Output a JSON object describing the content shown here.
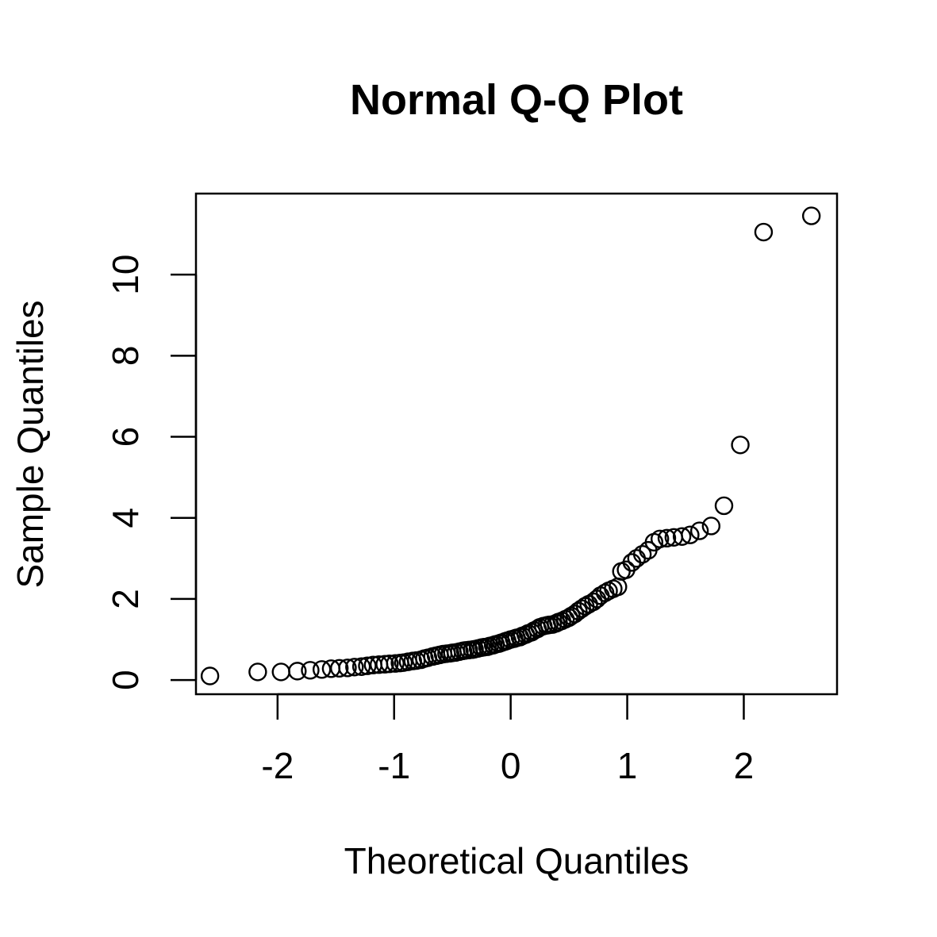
{
  "chart_data": {
    "type": "scatter",
    "title": "Normal Q-Q Plot",
    "xlabel": "Theoretical Quantiles",
    "ylabel": "Sample Quantiles",
    "xlim": [
      -2.7,
      2.8
    ],
    "ylim": [
      -0.35,
      12.0
    ],
    "x_ticks": [
      -2,
      -1,
      0,
      1,
      2
    ],
    "x_tick_labels": [
      "-2",
      "-1",
      "0",
      "1",
      "2"
    ],
    "y_ticks": [
      0,
      2,
      4,
      6,
      8,
      10
    ],
    "y_tick_labels": [
      "0",
      "2",
      "4",
      "6",
      "8",
      "10"
    ],
    "grid": false,
    "point_shape": "open-circle",
    "points": [
      [
        -2.58,
        0.1
      ],
      [
        -2.17,
        0.2
      ],
      [
        -1.97,
        0.2
      ],
      [
        -1.83,
        0.22
      ],
      [
        -1.72,
        0.24
      ],
      [
        -1.62,
        0.26
      ],
      [
        -1.54,
        0.28
      ],
      [
        -1.47,
        0.29
      ],
      [
        -1.4,
        0.3
      ],
      [
        -1.34,
        0.32
      ],
      [
        -1.28,
        0.33
      ],
      [
        -1.23,
        0.35
      ],
      [
        -1.18,
        0.37
      ],
      [
        -1.13,
        0.38
      ],
      [
        -1.08,
        0.39
      ],
      [
        -1.04,
        0.4
      ],
      [
        -0.99,
        0.41
      ],
      [
        -0.95,
        0.42
      ],
      [
        -0.92,
        0.43
      ],
      [
        -0.88,
        0.45
      ],
      [
        -0.84,
        0.47
      ],
      [
        -0.81,
        0.48
      ],
      [
        -0.77,
        0.5
      ],
      [
        -0.74,
        0.53
      ],
      [
        -0.71,
        0.55
      ],
      [
        -0.67,
        0.58
      ],
      [
        -0.64,
        0.6
      ],
      [
        -0.61,
        0.62
      ],
      [
        -0.58,
        0.64
      ],
      [
        -0.55,
        0.65
      ],
      [
        -0.52,
        0.66
      ],
      [
        -0.5,
        0.67
      ],
      [
        -0.47,
        0.68
      ],
      [
        -0.44,
        0.7
      ],
      [
        -0.41,
        0.72
      ],
      [
        -0.39,
        0.73
      ],
      [
        -0.36,
        0.74
      ],
      [
        -0.33,
        0.75
      ],
      [
        -0.31,
        0.76
      ],
      [
        -0.28,
        0.78
      ],
      [
        -0.25,
        0.8
      ],
      [
        -0.23,
        0.81
      ],
      [
        -0.2,
        0.82
      ],
      [
        -0.18,
        0.84
      ],
      [
        -0.15,
        0.86
      ],
      [
        -0.13,
        0.88
      ],
      [
        -0.1,
        0.9
      ],
      [
        -0.08,
        0.92
      ],
      [
        -0.05,
        0.95
      ],
      [
        -0.03,
        0.97
      ],
      [
        0.0,
        1.0
      ],
      [
        0.03,
        1.02
      ],
      [
        0.05,
        1.04
      ],
      [
        0.08,
        1.06
      ],
      [
        0.1,
        1.09
      ],
      [
        0.13,
        1.12
      ],
      [
        0.15,
        1.15
      ],
      [
        0.18,
        1.18
      ],
      [
        0.2,
        1.22
      ],
      [
        0.23,
        1.26
      ],
      [
        0.25,
        1.3
      ],
      [
        0.28,
        1.33
      ],
      [
        0.31,
        1.35
      ],
      [
        0.33,
        1.36
      ],
      [
        0.36,
        1.37
      ],
      [
        0.39,
        1.4
      ],
      [
        0.41,
        1.43
      ],
      [
        0.44,
        1.46
      ],
      [
        0.47,
        1.5
      ],
      [
        0.5,
        1.54
      ],
      [
        0.52,
        1.58
      ],
      [
        0.55,
        1.63
      ],
      [
        0.58,
        1.7
      ],
      [
        0.61,
        1.76
      ],
      [
        0.64,
        1.82
      ],
      [
        0.67,
        1.87
      ],
      [
        0.71,
        1.93
      ],
      [
        0.74,
        2.0
      ],
      [
        0.77,
        2.08
      ],
      [
        0.81,
        2.15
      ],
      [
        0.84,
        2.2
      ],
      [
        0.88,
        2.25
      ],
      [
        0.92,
        2.3
      ],
      [
        0.95,
        2.68
      ],
      [
        0.99,
        2.72
      ],
      [
        1.04,
        2.9
      ],
      [
        1.08,
        3.0
      ],
      [
        1.13,
        3.1
      ],
      [
        1.18,
        3.2
      ],
      [
        1.23,
        3.4
      ],
      [
        1.28,
        3.48
      ],
      [
        1.34,
        3.5
      ],
      [
        1.4,
        3.52
      ],
      [
        1.47,
        3.54
      ],
      [
        1.54,
        3.58
      ],
      [
        1.62,
        3.68
      ],
      [
        1.72,
        3.8
      ],
      [
        1.83,
        4.3
      ],
      [
        1.97,
        5.8
      ],
      [
        2.17,
        11.05
      ],
      [
        2.58,
        11.45
      ]
    ]
  }
}
